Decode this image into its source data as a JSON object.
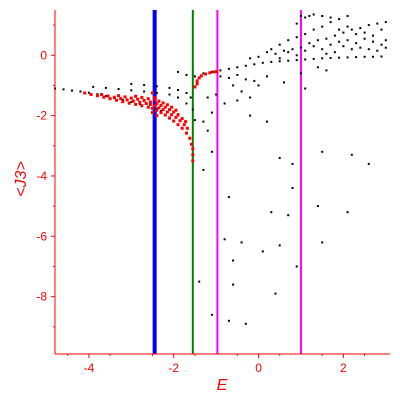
{
  "chart_data": {
    "type": "scatter",
    "title": "",
    "xlabel": "E",
    "ylabel": "<J3>",
    "xlim": [
      -4.8,
      3.1
    ],
    "ylim": [
      -9.9,
      1.5
    ],
    "grid": false,
    "legend": "none",
    "colors": {
      "axis": "#ff0000",
      "black_points": "#000000",
      "red_points": "#ff0000"
    },
    "x_ticks": [
      {
        "value": -4,
        "label": "-4"
      },
      {
        "value": -2,
        "label": "-2"
      },
      {
        "value": 0,
        "label": "0"
      },
      {
        "value": 2,
        "label": "2"
      }
    ],
    "y_ticks": [
      {
        "value": 0,
        "label": "0"
      },
      {
        "value": -2,
        "label": "-2"
      },
      {
        "value": -4,
        "label": "-4"
      },
      {
        "value": -6,
        "label": "-6"
      },
      {
        "value": -8,
        "label": "-8"
      }
    ],
    "vertical_lines": [
      {
        "x": -2.45,
        "color": "#0000ff",
        "width": 4
      },
      {
        "x": -1.55,
        "color": "#008000",
        "width": 2
      },
      {
        "x": -0.97,
        "color": "#ff00ff",
        "width": 2
      },
      {
        "x": 1.0,
        "color": "#ff00ff",
        "width": 2
      }
    ],
    "series": [
      {
        "color": "#000000",
        "points": [
          [
            -4.8,
            -1.1
          ],
          [
            -4.6,
            -1.13
          ],
          [
            -4.4,
            -1.17
          ],
          [
            -4.2,
            -1.2
          ],
          [
            -4.0,
            -1.24
          ],
          [
            -3.8,
            -1.29
          ],
          [
            -3.6,
            -1.35
          ],
          [
            -3.4,
            -1.42
          ],
          [
            -3.2,
            -1.48
          ],
          [
            -3.0,
            -1.55
          ],
          [
            -2.8,
            -1.62
          ],
          [
            -2.6,
            -1.7
          ],
          [
            -2.4,
            -1.78
          ],
          [
            -2.3,
            -1.85
          ],
          [
            -3.9,
            -1.05
          ],
          [
            -3.6,
            -1.08
          ],
          [
            -3.3,
            -1.12
          ],
          [
            -3.0,
            -1.16
          ],
          [
            -2.7,
            -1.2
          ],
          [
            -2.4,
            -1.25
          ],
          [
            -2.1,
            -1.3
          ],
          [
            -1.9,
            -1.4
          ],
          [
            -1.7,
            -1.6
          ],
          [
            -1.55,
            -1.8
          ],
          [
            -3.0,
            -0.95
          ],
          [
            -2.7,
            -0.99
          ],
          [
            -2.4,
            -1.03
          ],
          [
            -2.1,
            -1.08
          ],
          [
            -1.9,
            -1.15
          ],
          [
            -1.7,
            -1.25
          ],
          [
            -1.6,
            -1.4
          ],
          [
            -2.1,
            -2.1
          ],
          [
            -1.9,
            -1.95
          ],
          [
            -1.5,
            -2.15
          ],
          [
            -1.3,
            -2.2
          ],
          [
            -1.2,
            -2.5
          ],
          [
            -1.9,
            -0.55
          ],
          [
            -1.7,
            -0.65
          ],
          [
            -1.5,
            -0.7
          ],
          [
            -1.3,
            -0.6
          ],
          [
            -1.1,
            -0.55
          ],
          [
            -0.9,
            -0.5
          ],
          [
            -0.7,
            -0.45
          ],
          [
            -0.5,
            -0.4
          ],
          [
            -0.3,
            -0.35
          ],
          [
            -0.1,
            -0.3
          ],
          [
            0.1,
            -0.25
          ],
          [
            0.3,
            -0.22
          ],
          [
            0.5,
            -0.2
          ],
          [
            0.7,
            -0.18
          ],
          [
            0.9,
            -0.16
          ],
          [
            1.1,
            -0.14
          ],
          [
            1.3,
            -0.12
          ],
          [
            1.5,
            -0.1
          ],
          [
            1.7,
            -0.09
          ],
          [
            1.9,
            -0.08
          ],
          [
            2.1,
            -0.07
          ],
          [
            2.3,
            -0.06
          ],
          [
            2.5,
            -0.05
          ],
          [
            2.7,
            -0.05
          ],
          [
            2.9,
            -0.04
          ],
          [
            -0.9,
            -0.7
          ],
          [
            -0.7,
            -0.75
          ],
          [
            -0.5,
            -0.65
          ],
          [
            -0.3,
            -0.8
          ],
          [
            -0.1,
            -0.85
          ],
          [
            -0.6,
            -1.0
          ],
          [
            -0.4,
            -1.2
          ],
          [
            -0.8,
            -1.6
          ],
          [
            -0.5,
            -1.5
          ],
          [
            -1.0,
            -1.3
          ],
          [
            -1.2,
            -1.4
          ],
          [
            -1.1,
            -1.9
          ],
          [
            0.2,
            -2.2
          ],
          [
            -0.2,
            -1.4
          ],
          [
            0.0,
            -1.0
          ],
          [
            -0.2,
            -0.1
          ],
          [
            0.0,
            -0.05
          ],
          [
            0.2,
            0.1
          ],
          [
            0.4,
            0.05
          ],
          [
            0.6,
            0.15
          ],
          [
            0.8,
            0.2
          ],
          [
            1.0,
            0.25
          ],
          [
            1.2,
            0.4
          ],
          [
            1.4,
            0.5
          ],
          [
            1.6,
            0.55
          ],
          [
            1.8,
            0.65
          ],
          [
            2.0,
            0.75
          ],
          [
            2.2,
            0.85
          ],
          [
            2.4,
            0.9
          ],
          [
            2.6,
            1.0
          ],
          [
            2.8,
            1.05
          ],
          [
            3.0,
            1.1
          ],
          [
            0.5,
            0.35
          ],
          [
            0.7,
            0.5
          ],
          [
            0.9,
            0.6
          ],
          [
            1.1,
            0.7
          ],
          [
            1.3,
            0.85
          ],
          [
            1.5,
            0.95
          ],
          [
            1.7,
            1.1
          ],
          [
            1.9,
            1.2
          ],
          [
            2.1,
            1.3
          ],
          [
            0.9,
            1.05
          ],
          [
            1.1,
            1.25
          ],
          [
            1.3,
            1.35
          ],
          [
            1.5,
            1.3
          ],
          [
            1.7,
            1.25
          ],
          [
            1.0,
            1.3
          ],
          [
            1.2,
            1.3
          ],
          [
            0.3,
            0.2
          ],
          [
            0.5,
            -0.1
          ],
          [
            0.7,
            0.1
          ],
          [
            0.9,
            0.0
          ],
          [
            1.1,
            0.15
          ],
          [
            1.3,
            0.3
          ],
          [
            1.5,
            0.2
          ],
          [
            1.7,
            0.35
          ],
          [
            1.9,
            0.45
          ],
          [
            2.1,
            0.5
          ],
          [
            2.3,
            0.4
          ],
          [
            2.5,
            0.55
          ],
          [
            2.7,
            0.45
          ],
          [
            2.9,
            0.35
          ],
          [
            3.0,
            0.5
          ],
          [
            1.9,
            0.85
          ],
          [
            2.1,
            0.95
          ],
          [
            2.3,
            0.7
          ],
          [
            2.5,
            0.75
          ],
          [
            2.7,
            0.65
          ],
          [
            2.9,
            0.85
          ],
          [
            3.0,
            0.25
          ],
          [
            2.6,
            0.2
          ],
          [
            2.8,
            0.15
          ],
          [
            2.4,
            0.25
          ],
          [
            2.2,
            0.2
          ],
          [
            2.0,
            0.3
          ],
          [
            1.8,
            0.1
          ],
          [
            1.6,
            0.05
          ],
          [
            1.0,
            -0.6
          ],
          [
            1.4,
            -0.4
          ],
          [
            0.6,
            -0.9
          ],
          [
            0.2,
            -0.7
          ],
          [
            -0.2,
            -2.0
          ],
          [
            1.1,
            -1.1
          ],
          [
            1.6,
            -0.5
          ],
          [
            0.5,
            -3.4
          ],
          [
            0.8,
            -3.6
          ],
          [
            1.5,
            -3.2
          ],
          [
            2.2,
            -3.3
          ],
          [
            2.6,
            -3.6
          ],
          [
            -1.1,
            -3.2
          ],
          [
            -1.3,
            -3.8
          ],
          [
            0.8,
            -4.4
          ],
          [
            -0.7,
            -4.7
          ],
          [
            0.3,
            -5.2
          ],
          [
            0.7,
            -5.3
          ],
          [
            1.4,
            -5.0
          ],
          [
            2.1,
            -5.2
          ],
          [
            -0.8,
            -6.1
          ],
          [
            -0.4,
            -6.2
          ],
          [
            0.1,
            -6.5
          ],
          [
            0.5,
            -6.3
          ],
          [
            1.5,
            -6.2
          ],
          [
            -0.6,
            -6.8
          ],
          [
            0.9,
            -7.0
          ],
          [
            -1.4,
            -7.5
          ],
          [
            -0.6,
            -7.6
          ],
          [
            0.4,
            -7.9
          ],
          [
            -1.1,
            -8.6
          ],
          [
            -0.7,
            -8.8
          ],
          [
            -0.3,
            -8.9
          ]
        ]
      },
      {
        "color": "#ff0000",
        "points": [
          [
            -4.1,
            -1.25
          ],
          [
            -3.95,
            -1.3
          ],
          [
            -3.8,
            -1.34
          ],
          [
            -3.65,
            -1.39
          ],
          [
            -3.5,
            -1.44
          ],
          [
            -3.35,
            -1.49
          ],
          [
            -3.2,
            -1.54
          ],
          [
            -3.05,
            -1.59
          ],
          [
            -2.9,
            -1.63
          ],
          [
            -2.75,
            -1.67
          ],
          [
            -2.6,
            -1.72
          ],
          [
            -2.5,
            -1.76
          ],
          [
            -2.4,
            -1.82
          ],
          [
            -2.3,
            -1.9
          ],
          [
            -2.2,
            -1.98
          ],
          [
            -2.1,
            -2.08
          ],
          [
            -2.0,
            -2.18
          ],
          [
            -1.9,
            -2.3
          ],
          [
            -1.8,
            -2.42
          ],
          [
            -1.7,
            -2.58
          ],
          [
            -1.62,
            -2.75
          ],
          [
            -3.7,
            -1.3
          ],
          [
            -3.55,
            -1.35
          ],
          [
            -3.4,
            -1.39
          ],
          [
            -3.25,
            -1.44
          ],
          [
            -3.1,
            -1.48
          ],
          [
            -2.95,
            -1.52
          ],
          [
            -2.8,
            -1.56
          ],
          [
            -2.65,
            -1.6
          ],
          [
            -2.55,
            -1.63
          ],
          [
            -2.45,
            -1.68
          ],
          [
            -2.35,
            -1.74
          ],
          [
            -2.25,
            -1.8
          ],
          [
            -2.15,
            -1.88
          ],
          [
            -2.05,
            -1.97
          ],
          [
            -1.95,
            -2.06
          ],
          [
            -1.85,
            -2.17
          ],
          [
            -1.75,
            -2.3
          ],
          [
            -1.68,
            -2.42
          ],
          [
            -3.3,
            -1.34
          ],
          [
            -3.15,
            -1.38
          ],
          [
            -3.0,
            -1.42
          ],
          [
            -2.85,
            -1.46
          ],
          [
            -2.7,
            -1.5
          ],
          [
            -2.55,
            -1.55
          ],
          [
            -2.4,
            -1.6
          ],
          [
            -2.3,
            -1.66
          ],
          [
            -2.2,
            -1.72
          ],
          [
            -2.1,
            -1.8
          ],
          [
            -2.0,
            -1.88
          ],
          [
            -1.9,
            -1.98
          ],
          [
            -1.8,
            -2.1
          ],
          [
            -1.72,
            -2.2
          ],
          [
            -2.9,
            -1.36
          ],
          [
            -2.75,
            -1.4
          ],
          [
            -2.6,
            -1.44
          ],
          [
            -2.45,
            -1.48
          ],
          [
            -2.35,
            -1.52
          ],
          [
            -2.25,
            -1.58
          ],
          [
            -2.15,
            -1.64
          ],
          [
            -2.05,
            -1.72
          ],
          [
            -1.95,
            -1.82
          ],
          [
            -2.5,
            -1.25
          ],
          [
            -2.45,
            -1.4
          ],
          [
            -2.5,
            -1.9
          ],
          [
            -2.4,
            -2.0
          ],
          [
            -1.55,
            -3.1
          ],
          [
            -1.55,
            -3.3
          ],
          [
            -1.55,
            -3.5
          ],
          [
            -1.58,
            -2.95
          ],
          [
            -1.45,
            -0.85
          ],
          [
            -1.4,
            -0.75
          ],
          [
            -1.35,
            -0.68
          ],
          [
            -1.25,
            -0.62
          ],
          [
            -1.15,
            -0.58
          ],
          [
            -1.05,
            -0.55
          ],
          [
            -0.98,
            -0.54
          ],
          [
            -1.5,
            -1.05
          ],
          [
            -1.45,
            -0.95
          ]
        ]
      }
    ]
  }
}
